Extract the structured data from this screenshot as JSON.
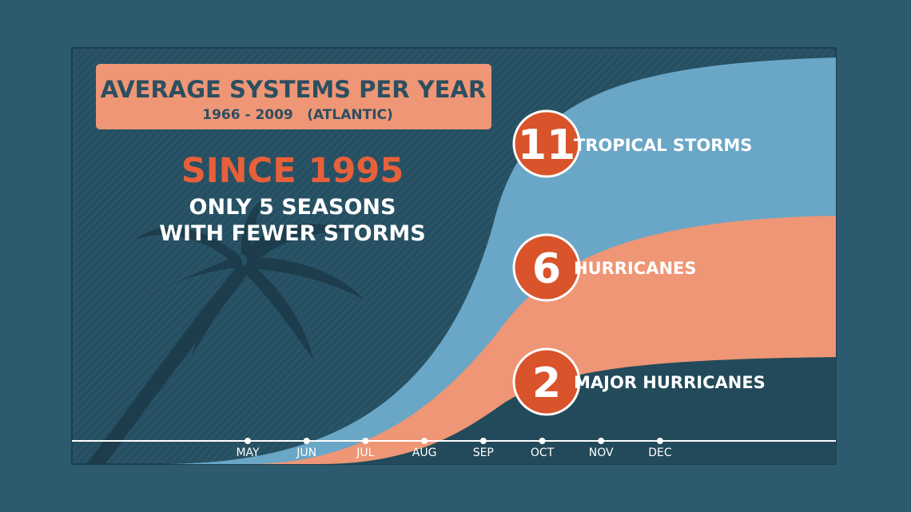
{
  "chart_data": {
    "type": "area",
    "title": "AVERAGE SYSTEMS PER YEAR",
    "subtitle_years": "1966 - 2009",
    "subtitle_basin": "(ATLANTIC)",
    "callout_heading": "SINCE 1995",
    "callout_lines": [
      "ONLY 5 SEASONS",
      "WITH FEWER STORMS"
    ],
    "categories": [
      "MAY",
      "JUN",
      "JUL",
      "AUG",
      "SEP",
      "OCT",
      "NOV",
      "DEC"
    ],
    "series": [
      {
        "name": "TROPICAL STORMS",
        "total": "11",
        "color": "#6aa6c6"
      },
      {
        "name": "HURRICANES",
        "total": "6",
        "color": "#ee9676"
      },
      {
        "name": "MAJOR HURRICANES",
        "total": "2",
        "color": "#234a5a"
      }
    ]
  },
  "colors": {
    "page_background": "#2c5a6e",
    "panel_background": "#264f62",
    "title_box": "#ee9676",
    "heading_accent": "#e8603a",
    "badge": "#d9532b",
    "text_dark": "#2b4f60",
    "palm": "#1d3d4c"
  }
}
